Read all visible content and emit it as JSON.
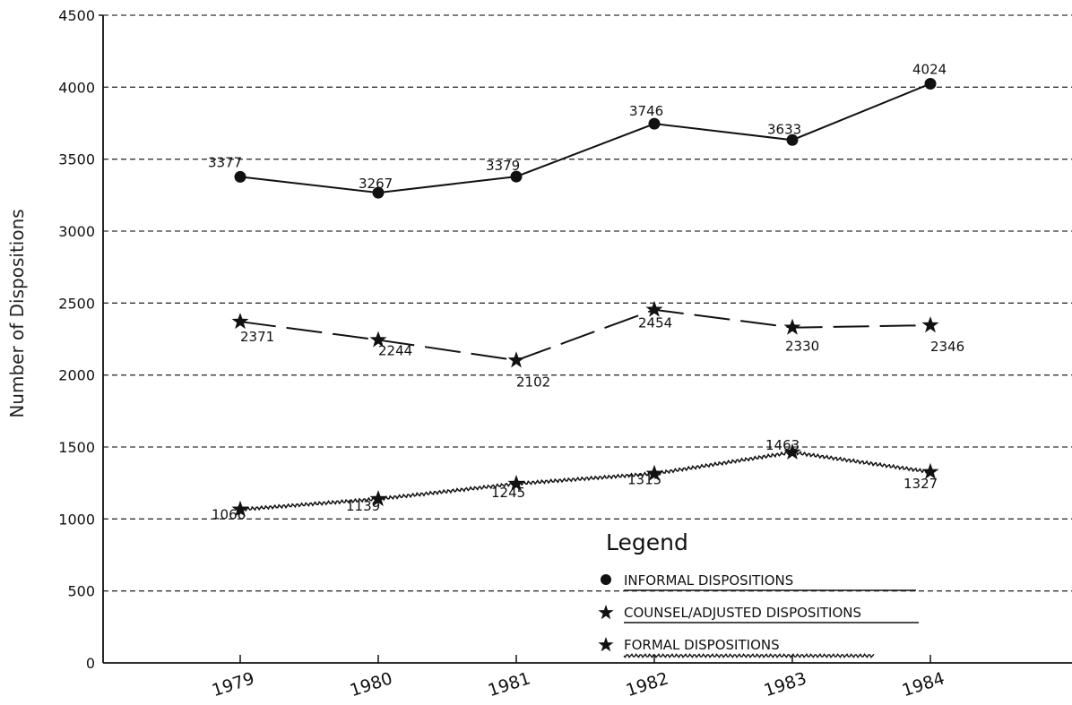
{
  "chart_data": {
    "type": "line",
    "title": "",
    "xlabel": "",
    "ylabel": "Number of Dispositions",
    "categories": [
      "1979",
      "1980",
      "1981",
      "1982",
      "1983",
      "1984"
    ],
    "ylim": [
      0,
      4500
    ],
    "yticks": [
      "0",
      "500",
      "1000",
      "1500",
      "2000",
      "2500",
      "3000",
      "3500",
      "4000",
      "4500"
    ],
    "grid": true,
    "series": [
      {
        "name": "INFORMAL DISPOSITIONS",
        "marker": "circle",
        "line_style": "solid",
        "values": [
          3377,
          3267,
          3379,
          3746,
          3633,
          4024
        ],
        "labels": [
          "3377",
          "3267",
          "3379",
          "3746",
          "3633",
          "4024"
        ]
      },
      {
        "name": "COUNSEL/ADJUSTED DISPOSITIONS",
        "marker": "star",
        "line_style": "long-dash",
        "values": [
          2371,
          2244,
          2102,
          2454,
          2330,
          2346
        ],
        "labels": [
          "2371",
          "2244",
          "2102",
          "2454",
          "2330",
          "2346"
        ]
      },
      {
        "name": "FORMAL DISPOSITIONS",
        "marker": "star",
        "line_style": "wavy",
        "values": [
          1066,
          1139,
          1245,
          1315,
          1463,
          1327
        ],
        "labels": [
          "1066",
          "1139",
          "1245",
          "1315",
          "1463",
          "1327"
        ]
      }
    ],
    "legend": {
      "title": "Legend",
      "position": "bottom-right"
    }
  }
}
